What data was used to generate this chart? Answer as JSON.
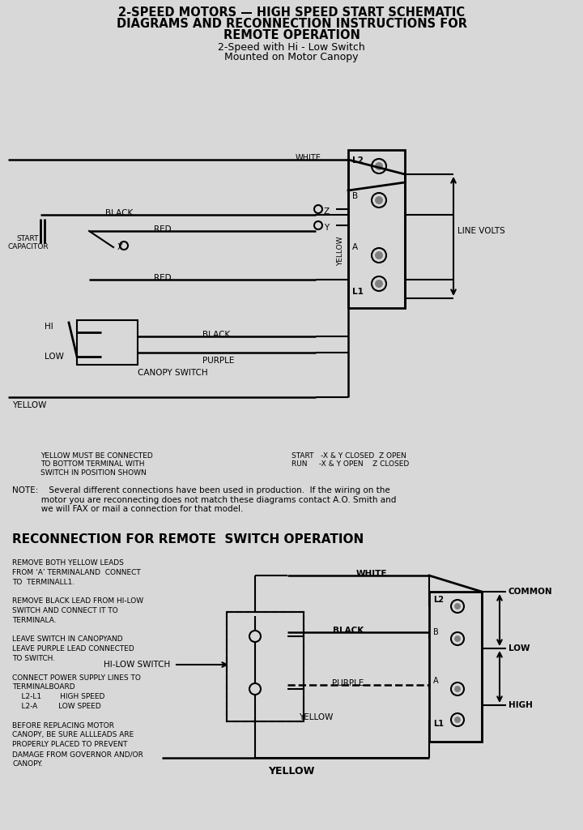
{
  "bg_color": "#d8d8d8",
  "title_line1": "2-SPEED MOTORS — HIGH SPEED START SCHEMATIC",
  "title_line2": "DIAGRAMS AND RECONNECTION INSTRUCTIONS FOR",
  "title_line3": "REMOTE OPERATION",
  "subtitle_line1": "2-Speed with Hi - Low Switch",
  "subtitle_line2": "Mounted on Motor Canopy",
  "note_text": "NOTE:    Several different connections have been used in production.  If the wiring on the\n           motor you are reconnecting does not match these diagrams contact A.O. Smith and\n           we will FAX or mail a connection for that model.",
  "reconnection_title": "RECONNECTION FOR REMOTE  SWITCH OPERATION",
  "left_instructions": "REMOVE BOTH YELLOW LEADS\nFROM ‘A’ TERMINALAND  CONNECT\nTO  TERMINALL1.\n\nREMOVE BLACK LEAD FROM HI-LOW\nSWITCH AND CONNECT IT TO\nTERMINALA.\n\nLEAVE SWITCH IN CANOPYAND\nLEAVE PURPLE LEAD CONNECTED\nTO SWITCH.\n\nCONNECT POWER SUPPLY LINES TO\nTERMINALBOARD\n    L2-L1        HIGH SPEED\n    L2-A         LOW SPEED\n\nBEFORE REPLACING MOTOR\nCANOPY, BE SURE ALLLEADS ARE\nPROPERLY PLACED TO PREVENT\nDAMAGE FROM GOVERNOR AND/OR\nCANOPY.",
  "bottom_note_left": "YELLOW MUST BE CONNECTED\nTO BOTTOM TERMINAL WITH\nSWITCH IN POSITION SHOWN",
  "bottom_note_right": "START   -X & Y CLOSED  Z OPEN\nRUN     -X & Y OPEN    Z CLOSED"
}
